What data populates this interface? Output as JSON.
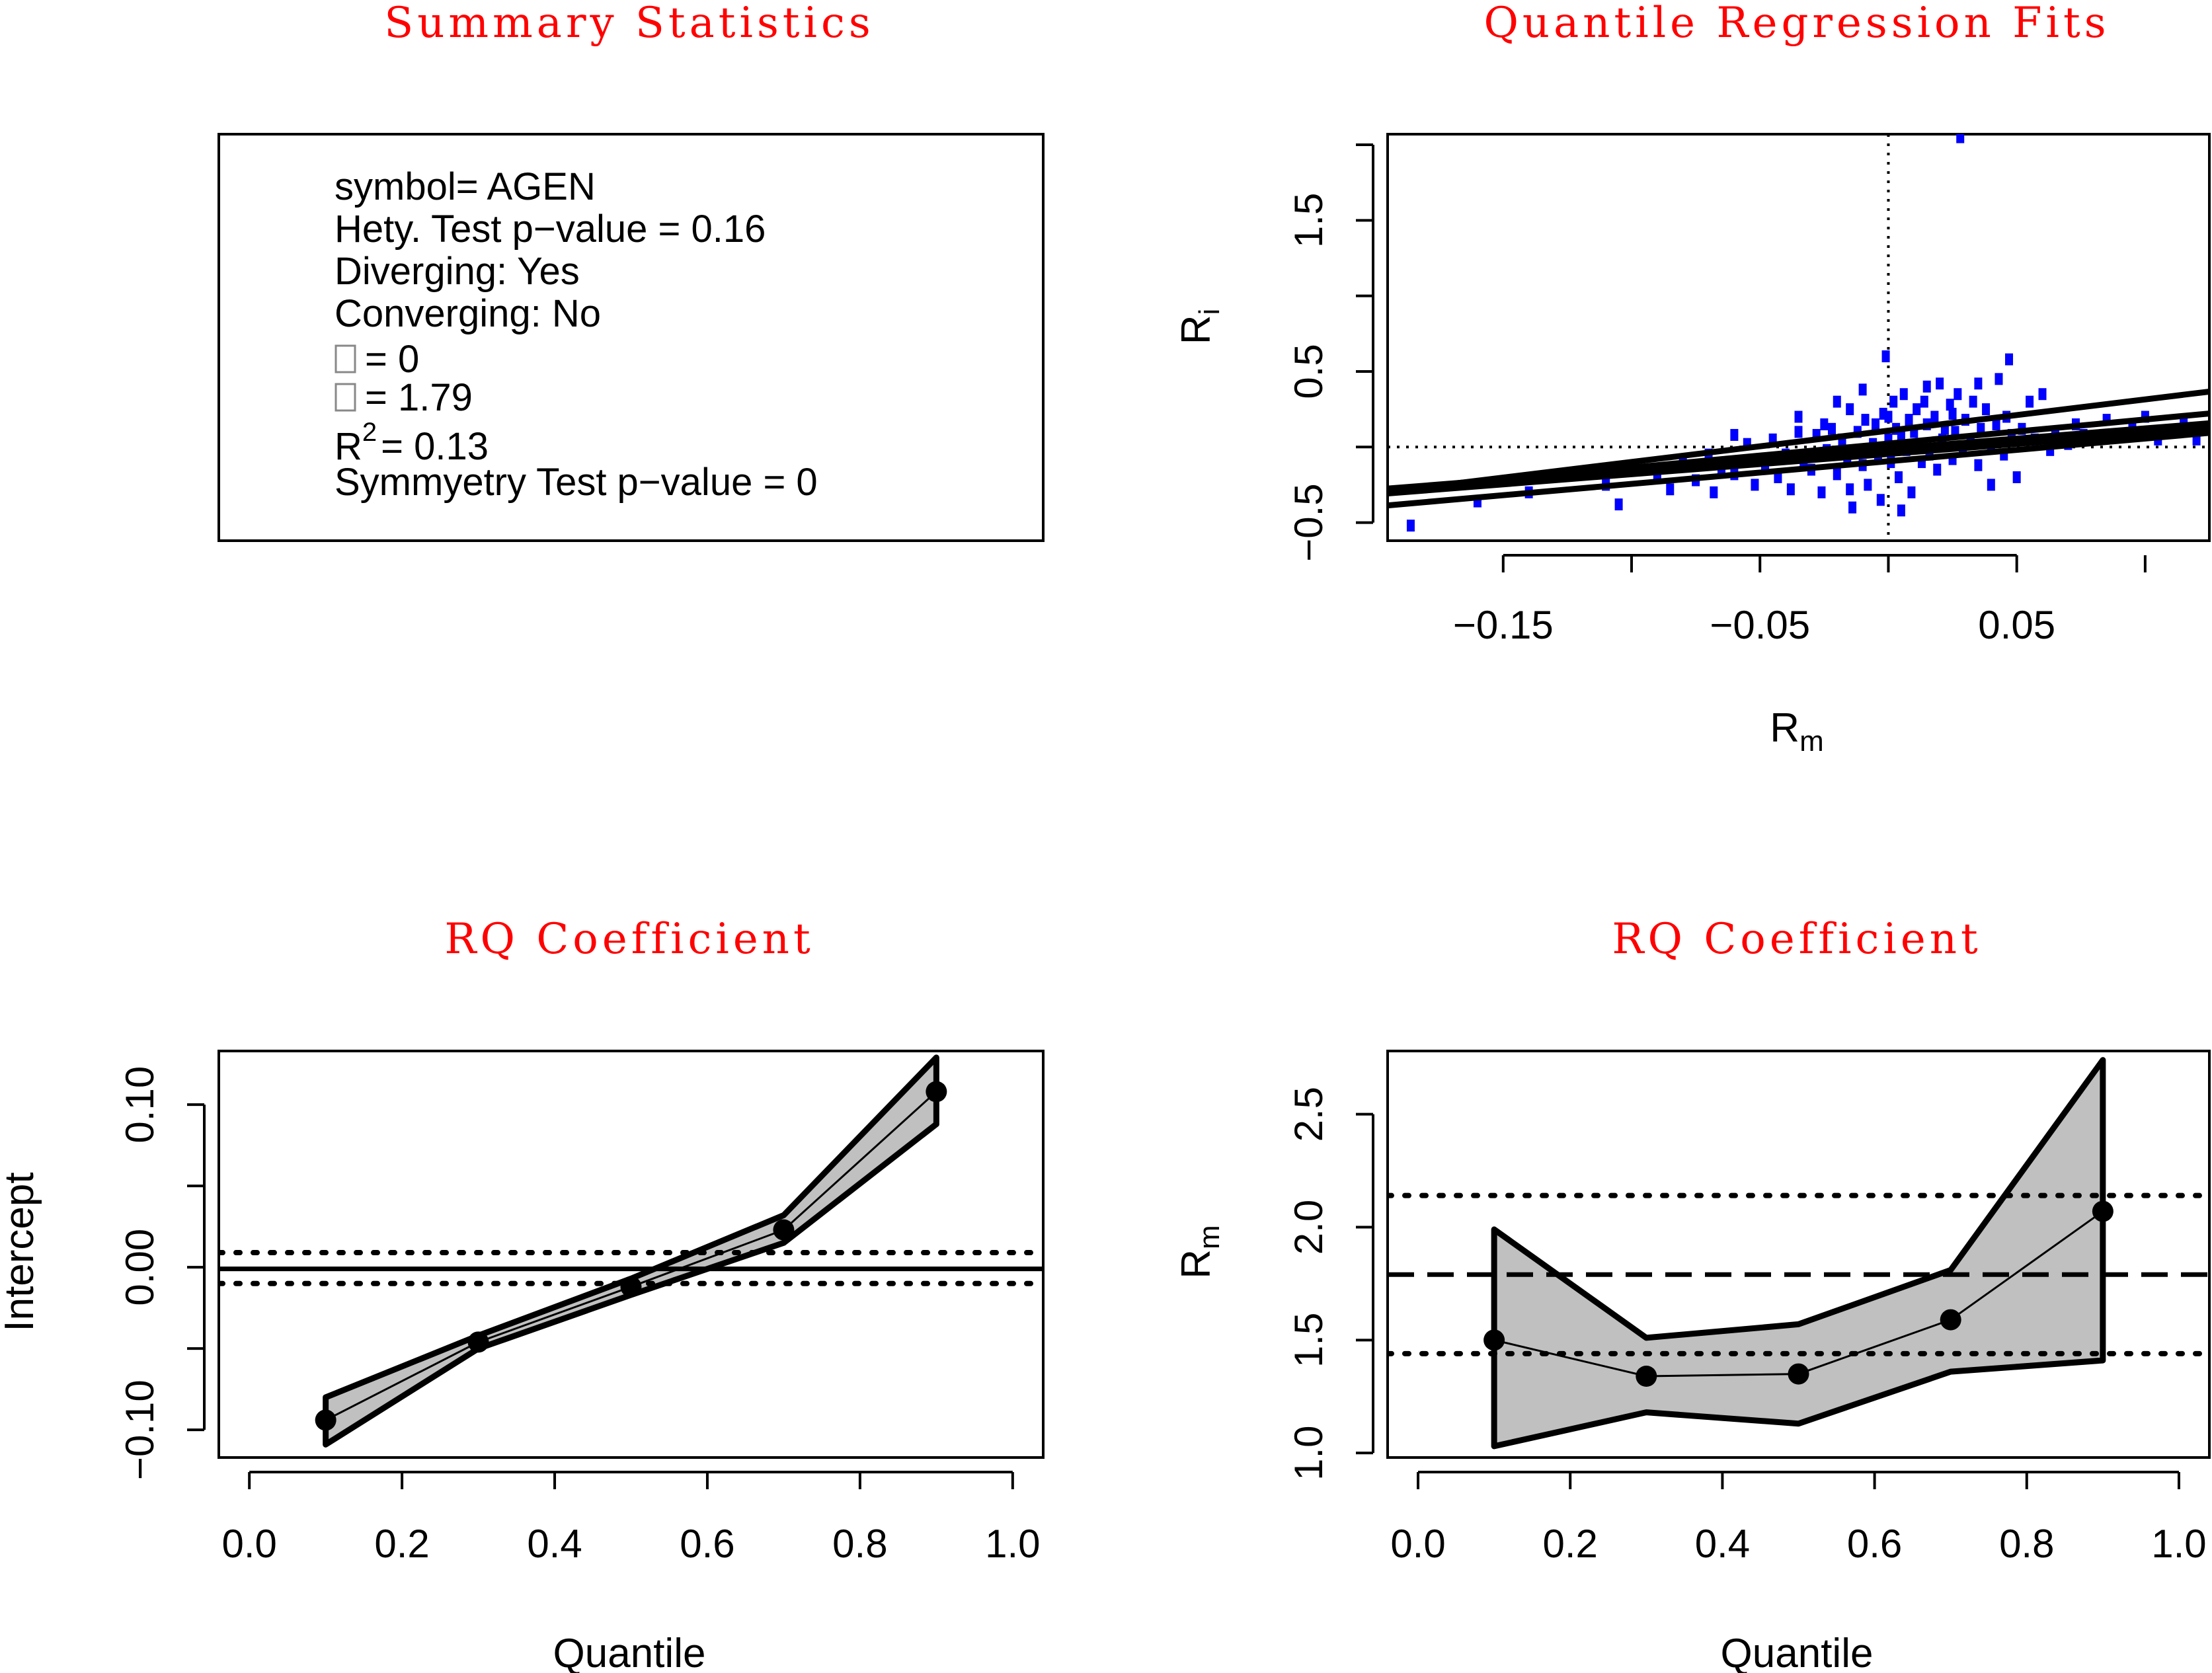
{
  "panels": {
    "summary": {
      "title": "Summary Statistics",
      "lines": [
        "symbol= AGEN",
        "Hety. Test p−value = 0.16",
        "Diverging: Yes",
        "Converging: No"
      ],
      "alpha_value": "= 0",
      "beta_value": "= 1.79",
      "r2_prefix": "R",
      "r2_sup": "2",
      "r2_value": "= 0.13",
      "symmetry_line": "Symmyetry Test p−value = 0"
    },
    "scatter": {
      "title": "Quantile Regression Fits",
      "xlabel_main": "R",
      "xlabel_sub": "m",
      "ylabel_main": "R",
      "ylabel_sub": "i",
      "point_color": "#0000ff"
    },
    "intercept": {
      "title": "RQ Coefficient",
      "xlabel": "Quantile",
      "ylabel": "Intercept"
    },
    "slope": {
      "title": "RQ Coefficient",
      "xlabel": "Quantile",
      "ylabel_main": "R",
      "ylabel_sub": "m"
    }
  },
  "chart_data": [
    {
      "type": "scatter",
      "title": "Quantile Regression Fits",
      "xlabel": "Rm",
      "ylabel": "Ri",
      "xlim": [
        -0.195,
        0.125
      ],
      "ylim": [
        -0.62,
        2.07
      ],
      "x_ticks": [
        -0.15,
        -0.05,
        0.05
      ],
      "x_tick_labels": [
        "−0.15",
        "−0.05",
        "0.05"
      ],
      "x_minor_ticks": [
        -0.1,
        0.0,
        0.1
      ],
      "y_ticks": [
        -0.5,
        0.5,
        1.5
      ],
      "y_tick_labels": [
        "−0.5",
        "0.5",
        "1.5"
      ],
      "y_minor_ticks": [
        0.0,
        1.0,
        2.0
      ],
      "reference_lines": {
        "vertical_x": 0.0,
        "horizontal_y": 0.0,
        "style": "dotted"
      },
      "quantile_fits": [
        {
          "tau": 0.1,
          "intercept": -0.094,
          "slope": 1.5
        },
        {
          "tau": 0.3,
          "intercept": -0.046,
          "slope": 1.34
        },
        {
          "tau": 0.5,
          "intercept": -0.012,
          "slope": 1.35
        },
        {
          "tau": 0.7,
          "intercept": 0.023,
          "slope": 1.59
        },
        {
          "tau": 0.9,
          "intercept": 0.108,
          "slope": 2.07
        }
      ],
      "points": [
        [
          -0.186,
          -0.52
        ],
        [
          -0.16,
          -0.36
        ],
        [
          -0.14,
          -0.3
        ],
        [
          -0.11,
          -0.25
        ],
        [
          -0.105,
          -0.38
        ],
        [
          -0.09,
          -0.2
        ],
        [
          -0.085,
          -0.28
        ],
        [
          -0.08,
          -0.1
        ],
        [
          -0.075,
          -0.22
        ],
        [
          -0.07,
          -0.05
        ],
        [
          -0.068,
          -0.3
        ],
        [
          -0.065,
          -0.15
        ],
        [
          -0.06,
          -0.18
        ],
        [
          -0.055,
          0.02
        ],
        [
          -0.052,
          -0.25
        ],
        [
          -0.05,
          -0.08
        ],
        [
          -0.048,
          -0.12
        ],
        [
          -0.045,
          0.05
        ],
        [
          -0.043,
          -0.2
        ],
        [
          -0.04,
          -0.05
        ],
        [
          -0.038,
          -0.28
        ],
        [
          -0.035,
          0.1
        ],
        [
          -0.033,
          -0.1
        ],
        [
          -0.03,
          -0.15
        ],
        [
          -0.028,
          0.08
        ],
        [
          -0.026,
          -0.3
        ],
        [
          -0.024,
          -0.02
        ],
        [
          -0.022,
          0.12
        ],
        [
          -0.02,
          -0.18
        ],
        [
          -0.018,
          0.05
        ],
        [
          -0.016,
          -0.08
        ],
        [
          -0.015,
          0.25
        ],
        [
          -0.014,
          -0.4
        ],
        [
          -0.012,
          0.1
        ],
        [
          -0.01,
          -0.12
        ],
        [
          -0.009,
          0.18
        ],
        [
          -0.008,
          -0.25
        ],
        [
          -0.006,
          0.02
        ],
        [
          -0.005,
          0.15
        ],
        [
          -0.004,
          -0.05
        ],
        [
          -0.003,
          -0.35
        ],
        [
          -0.002,
          0.22
        ],
        [
          -0.001,
          0.6
        ],
        [
          0.0,
          0.05
        ],
        [
          0.001,
          -0.1
        ],
        [
          0.002,
          0.3
        ],
        [
          0.003,
          0.12
        ],
        [
          0.004,
          -0.2
        ],
        [
          0.005,
          0.08
        ],
        [
          0.006,
          0.35
        ],
        [
          0.007,
          -0.02
        ],
        [
          0.008,
          0.18
        ],
        [
          0.009,
          -0.3
        ],
        [
          0.01,
          0.1
        ],
        [
          0.011,
          0.25
        ],
        [
          0.012,
          0.02
        ],
        [
          0.013,
          -0.1
        ],
        [
          0.014,
          0.3
        ],
        [
          0.015,
          0.15
        ],
        [
          0.016,
          -0.05
        ],
        [
          0.018,
          0.2
        ],
        [
          0.019,
          -0.15
        ],
        [
          0.02,
          0.42
        ],
        [
          0.021,
          0.05
        ],
        [
          0.022,
          0.12
        ],
        [
          0.024,
          0.28
        ],
        [
          0.025,
          -0.08
        ],
        [
          0.026,
          0.1
        ],
        [
          0.027,
          0.35
        ],
        [
          0.028,
          2.05
        ],
        [
          0.029,
          -0.02
        ],
        [
          0.03,
          0.18
        ],
        [
          0.032,
          0.05
        ],
        [
          0.033,
          0.3
        ],
        [
          0.035,
          -0.12
        ],
        [
          0.036,
          0.12
        ],
        [
          0.038,
          0.25
        ],
        [
          0.04,
          0.02
        ],
        [
          0.042,
          0.15
        ],
        [
          0.043,
          0.45
        ],
        [
          0.045,
          -0.05
        ],
        [
          0.046,
          0.2
        ],
        [
          0.047,
          0.58
        ],
        [
          0.048,
          0.08
        ],
        [
          0.05,
          -0.2
        ],
        [
          0.052,
          0.12
        ],
        [
          0.055,
          0.3
        ],
        [
          0.057,
          0.05
        ],
        [
          0.06,
          0.35
        ],
        [
          0.063,
          -0.02
        ],
        [
          0.065,
          0.1
        ],
        [
          0.07,
          0.02
        ],
        [
          0.073,
          0.15
        ],
        [
          0.076,
          0.08
        ],
        [
          0.08,
          0.05
        ],
        [
          0.085,
          0.18
        ],
        [
          0.09,
          0.08
        ],
        [
          0.095,
          0.12
        ],
        [
          0.1,
          0.2
        ],
        [
          0.105,
          0.05
        ],
        [
          0.11,
          0.1
        ],
        [
          0.115,
          0.15
        ],
        [
          0.12,
          0.05
        ],
        [
          -0.025,
          0.15
        ],
        [
          -0.035,
          0.2
        ],
        [
          -0.01,
          0.38
        ],
        [
          0.015,
          0.4
        ],
        [
          0.035,
          0.42
        ],
        [
          -0.015,
          -0.28
        ],
        [
          0.005,
          -0.42
        ],
        [
          0.04,
          -0.25
        ],
        [
          -0.06,
          0.08
        ],
        [
          -0.02,
          0.3
        ],
        [
          0.0,
          0.2
        ],
        [
          0.025,
          0.22
        ]
      ]
    },
    {
      "type": "line",
      "title": "RQ Coefficient",
      "xlabel": "Quantile",
      "ylabel": "Intercept",
      "xlim": [
        -0.04,
        1.04
      ],
      "ylim": [
        -0.117,
        0.133
      ],
      "x_ticks": [
        0.0,
        0.2,
        0.4,
        0.6,
        0.8,
        1.0
      ],
      "x_tick_labels": [
        "0.0",
        "0.2",
        "0.4",
        "0.6",
        "0.8",
        "1.0"
      ],
      "y_ticks": [
        -0.1,
        0.0,
        0.1
      ],
      "y_tick_labels": [
        "−0.10",
        "0.00",
        "0.10"
      ],
      "y_minor_ticks": [
        -0.05,
        0.05
      ],
      "x": [
        0.1,
        0.3,
        0.5,
        0.7,
        0.9
      ],
      "estimate": [
        -0.094,
        -0.046,
        -0.012,
        0.023,
        0.108
      ],
      "ci_lower": [
        -0.109,
        -0.05,
        -0.017,
        0.015,
        0.088
      ],
      "ci_upper": [
        -0.08,
        -0.042,
        -0.007,
        0.032,
        0.129
      ],
      "ols_estimate": -0.001,
      "ols_ci": [
        -0.01,
        0.009
      ]
    },
    {
      "type": "line",
      "title": "RQ Coefficient",
      "xlabel": "Quantile",
      "ylabel": "Rm",
      "xlim": [
        -0.04,
        1.04
      ],
      "ylim": [
        0.98,
        2.78
      ],
      "x_ticks": [
        0.0,
        0.2,
        0.4,
        0.6,
        0.8,
        1.0
      ],
      "x_tick_labels": [
        "0.0",
        "0.2",
        "0.4",
        "0.6",
        "0.8",
        "1.0"
      ],
      "y_ticks": [
        1.0,
        1.5,
        2.0,
        2.5
      ],
      "y_tick_labels": [
        "1.0",
        "1.5",
        "2.0",
        "2.5"
      ],
      "x": [
        0.1,
        0.3,
        0.5,
        0.7,
        0.9
      ],
      "estimate": [
        1.5,
        1.34,
        1.35,
        1.59,
        2.07
      ],
      "ci_lower": [
        1.03,
        1.18,
        1.13,
        1.36,
        1.41
      ],
      "ci_upper": [
        1.99,
        1.51,
        1.57,
        1.81,
        2.74
      ],
      "ols_estimate": 1.79,
      "ols_ci": [
        1.44,
        2.14
      ]
    }
  ]
}
